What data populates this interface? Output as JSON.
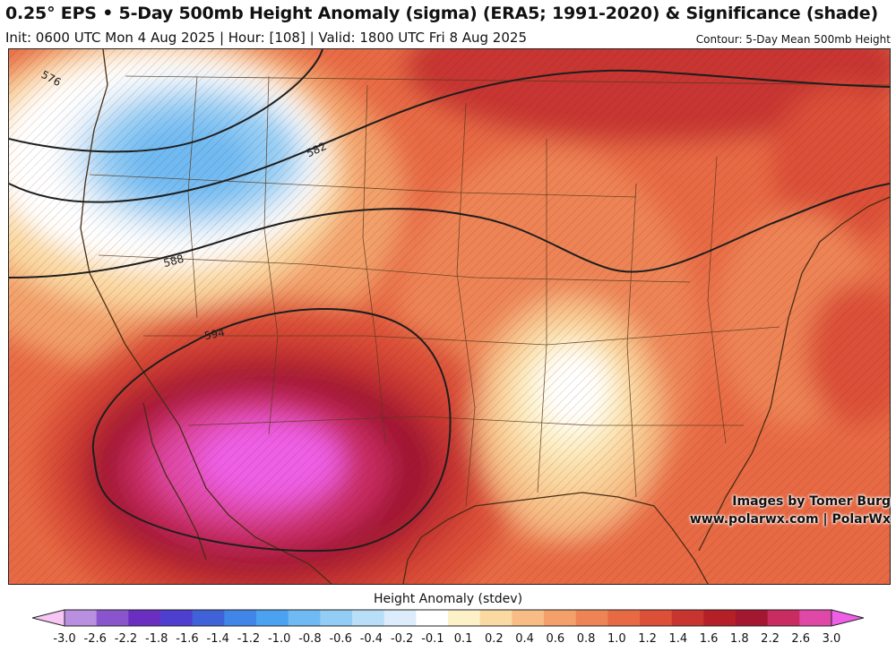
{
  "header": {
    "title": "0.25° EPS • 5-Day 500mb Height Anomaly (sigma) (ERA5; 1991-2020) & Significance (shade)",
    "subtitle": "Init: 0600 UTC Mon 4 Aug 2025 | Hour: [108] | Valid: 1800 UTC Fri 8 Aug 2025",
    "contour_note": "Contour: 5-Day Mean 500mb Height"
  },
  "map": {
    "contour_labels": [
      "576",
      "582",
      "588",
      "594"
    ]
  },
  "credits": {
    "line1": "Images by Tomer Burg",
    "line2": "www.polarwx.com | PolarWx"
  },
  "colorbar": {
    "title": "Height Anomaly (stdev)",
    "ticks": [
      "-3.0",
      "-2.6",
      "-2.2",
      "-1.8",
      "-1.6",
      "-1.4",
      "-1.2",
      "-1.0",
      "-0.8",
      "-0.6",
      "-0.4",
      "-0.2",
      "-0.1",
      "0.1",
      "0.2",
      "0.4",
      "0.6",
      "0.8",
      "1.0",
      "1.2",
      "1.4",
      "1.6",
      "1.8",
      "2.2",
      "2.6",
      "3.0"
    ],
    "colors": [
      "#f7c6f4",
      "#b98fe0",
      "#8a55cc",
      "#6a2ec0",
      "#4f3fce",
      "#3f62d8",
      "#3f86e8",
      "#4aa2f0",
      "#6fbaf3",
      "#93cdf5",
      "#b8def8",
      "#dcecfa",
      "#ffffff",
      "#fdf1c8",
      "#fbd9a2",
      "#f7bd85",
      "#f3a06b",
      "#ee8456",
      "#e86a44",
      "#dc5038",
      "#c83530",
      "#b51f28",
      "#a31830",
      "#c82c60",
      "#e048a8",
      "#ee5fe6"
    ]
  }
}
